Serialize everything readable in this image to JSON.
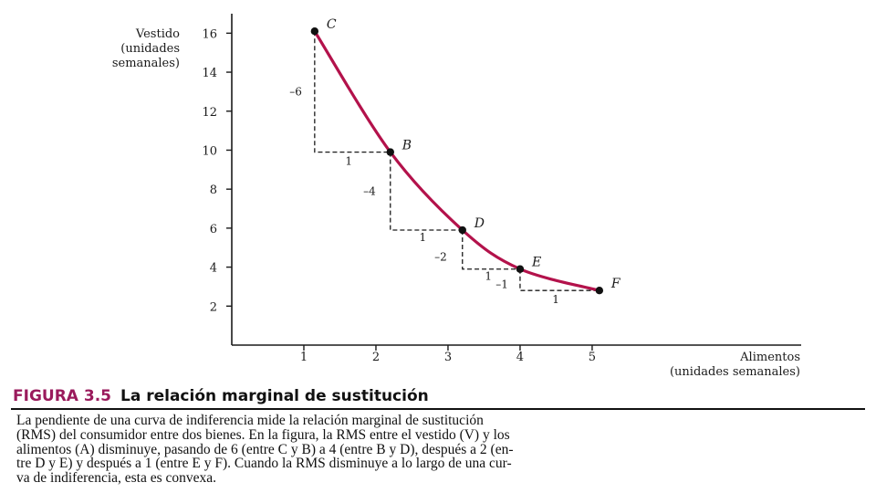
{
  "chart_data": {
    "type": "line",
    "title": "",
    "ylabel_lines": [
      "Vestido",
      "(unidades",
      "semanales)"
    ],
    "xlabel_lines": [
      "Alimentos",
      "(unidades semanales)"
    ],
    "x_ticks": [
      1,
      2,
      3,
      4,
      5
    ],
    "y_ticks": [
      2,
      4,
      6,
      8,
      10,
      12,
      14,
      16
    ],
    "xlim": [
      0,
      7.9
    ],
    "ylim": [
      0,
      17
    ],
    "grid": false,
    "points": [
      {
        "name": "C",
        "x": 1.15,
        "y": 16.1
      },
      {
        "name": "B",
        "x": 2.2,
        "y": 9.9
      },
      {
        "name": "D",
        "x": 3.2,
        "y": 5.9
      },
      {
        "name": "E",
        "x": 4.0,
        "y": 3.9
      },
      {
        "name": "F",
        "x": 5.1,
        "y": 2.8
      }
    ],
    "step_labels": {
      "vertical": [
        "–6",
        "–4",
        "–2",
        "–1"
      ],
      "horizontal": [
        "1",
        "1",
        "1",
        "1"
      ]
    },
    "curve_color": "#b3124b"
  },
  "caption": {
    "figure_number": "FIGURA 3.5",
    "figure_title": "La relación marginal de sustitución",
    "body_lines": [
      "La pendiente de una curva de indiferencia mide la relación marginal de sustitución",
      "(RMS) del consumidor entre dos bienes. En la figura, la RMS entre el vestido (V) y los",
      "alimentos (A) disminuye, pasando de 6 (entre C y B) a 4 (entre B y D), después a 2 (en-",
      "tre D y E) y después a 1 (entre E y F). Cuando la RMS disminuye a lo largo de una cur-",
      "va de indiferencia, esta es convexa."
    ]
  }
}
